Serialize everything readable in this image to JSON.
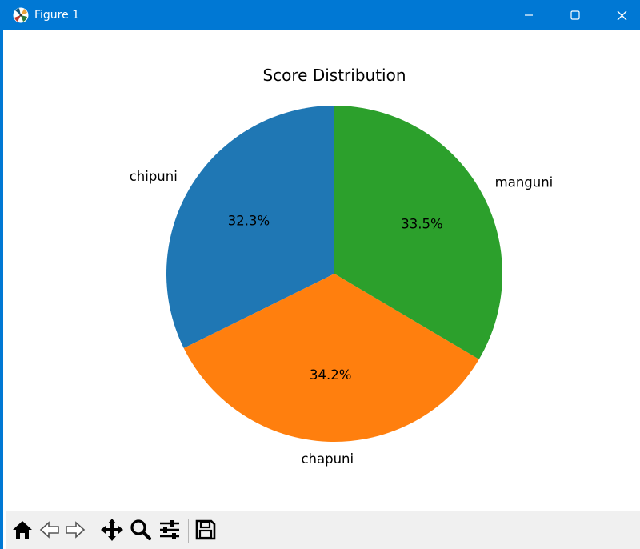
{
  "window": {
    "title": "Figure 1",
    "titlebar_color": "#0078d4",
    "icons": [
      "matplotlib-logo-icon",
      "minimize-icon",
      "maximize-icon",
      "close-icon"
    ]
  },
  "toolbar": {
    "tools": [
      "home-icon",
      "back-arrow-icon",
      "forward-arrow-icon",
      "pan-icon",
      "zoom-icon",
      "configure-subplots-icon",
      "save-icon"
    ]
  },
  "chart_data": {
    "type": "pie",
    "title": "Score Distribution",
    "labels": [
      "chipuni",
      "chapuni",
      "manguni"
    ],
    "values": [
      32.3,
      34.2,
      33.5
    ],
    "percent_labels": [
      "32.3%",
      "34.2%",
      "33.5%"
    ],
    "colors": [
      "#1f77b4",
      "#ff7f0e",
      "#2ca02c"
    ],
    "start_angle_deg": 90,
    "direction": "counterclockwise"
  }
}
